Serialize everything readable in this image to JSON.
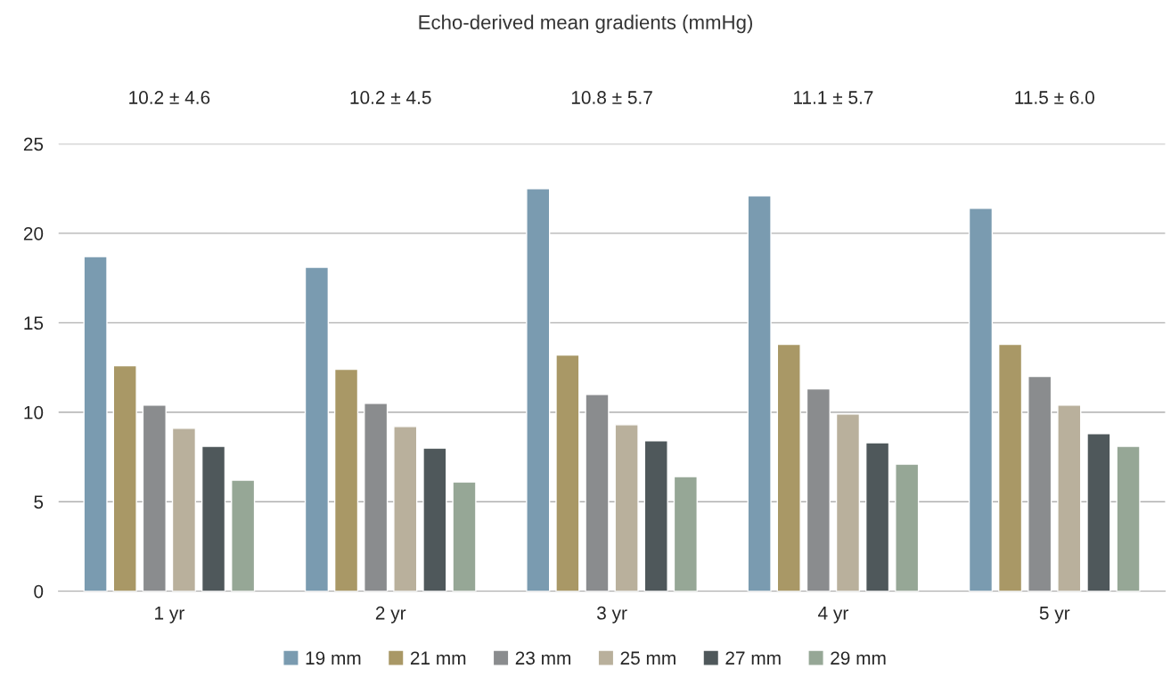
{
  "chart_data": {
    "type": "bar",
    "title": "Echo-derived mean gradients (mmHg)",
    "categories": [
      "1 yr",
      "2 yr",
      "3 yr",
      "4 yr",
      "5 yr"
    ],
    "series": [
      {
        "name": "19 mm",
        "color": "#7a9bb0",
        "values": [
          18.7,
          18.1,
          22.5,
          22.1,
          21.4
        ]
      },
      {
        "name": "21 mm",
        "color": "#a99866",
        "values": [
          12.6,
          12.4,
          13.2,
          13.8,
          13.8
        ]
      },
      {
        "name": "23 mm",
        "color": "#8a8c8e",
        "values": [
          10.4,
          10.5,
          11.0,
          11.3,
          12.0
        ]
      },
      {
        "name": "25 mm",
        "color": "#b9b09c",
        "values": [
          9.1,
          9.2,
          9.3,
          9.9,
          10.4
        ]
      },
      {
        "name": "27 mm",
        "color": "#4f585b",
        "values": [
          8.1,
          8.0,
          8.4,
          8.3,
          8.8
        ]
      },
      {
        "name": "29 mm",
        "color": "#96a796",
        "values": [
          6.2,
          6.1,
          6.4,
          7.1,
          8.1
        ]
      }
    ],
    "annotations": [
      "10.2 ± 4.6",
      "10.2 ± 4.5",
      "10.8 ± 5.7",
      "11.1 ± 5.7",
      "11.5 ± 6.0"
    ],
    "ylim": [
      0,
      25
    ],
    "yticks": [
      0,
      5,
      10,
      15,
      20,
      25
    ],
    "grid": "y",
    "legend": "bottom"
  }
}
